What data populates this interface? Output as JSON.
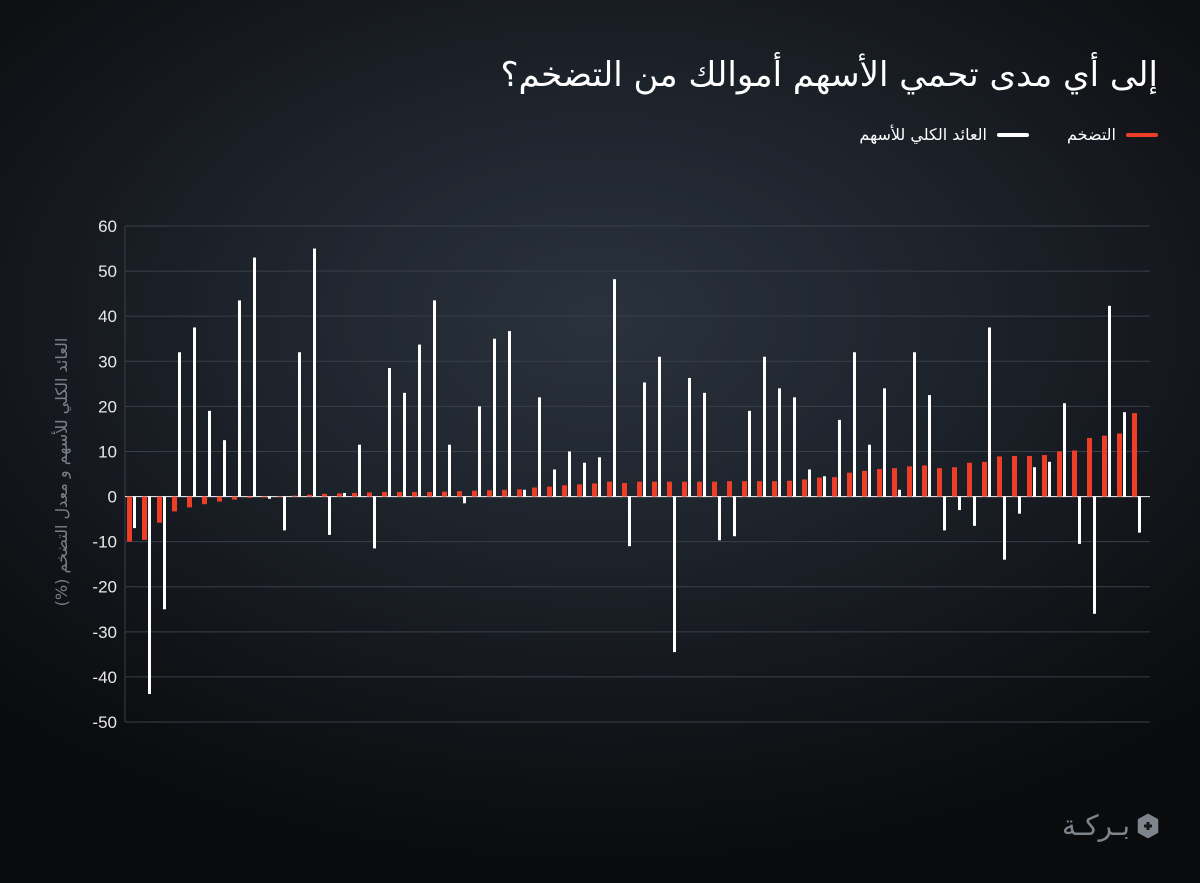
{
  "chart_data": {
    "type": "bar",
    "title": "إلى أي مدى تحمي الأسهم أموالك من التضخم؟",
    "ylabel": "العائد الكلي للأسهم و معدل التضخم (%)",
    "ylim": [
      -50,
      60
    ],
    "yticks": [
      60,
      50,
      40,
      30,
      20,
      10,
      0,
      -10,
      -20,
      -30,
      -40,
      -50
    ],
    "grid": true,
    "legend_position": "top-right",
    "series": [
      {
        "name": "التضخم",
        "color": "#ef3e28",
        "values": [
          -10.0,
          -9.6,
          -5.8,
          -3.3,
          -2.4,
          -1.7,
          -1.1,
          -0.7,
          -0.3,
          -0.2,
          0.0,
          0.2,
          0.4,
          0.6,
          0.7,
          0.8,
          0.9,
          1.0,
          1.0,
          1.0,
          1.0,
          1.1,
          1.2,
          1.3,
          1.4,
          1.5,
          1.6,
          2.0,
          2.2,
          2.5,
          2.7,
          2.9,
          3.3,
          3.0,
          3.3,
          3.3,
          3.3,
          3.3,
          3.3,
          3.3,
          3.4,
          3.4,
          3.4,
          3.4,
          3.5,
          3.8,
          4.2,
          4.3,
          5.3,
          5.7,
          6.1,
          6.3,
          6.7,
          6.9,
          6.3,
          6.5,
          7.5,
          7.7,
          8.9,
          9.0,
          9.0,
          9.2,
          10.0,
          10.2,
          13.0,
          13.5,
          14.0,
          18.5
        ]
      },
      {
        "name": "العائد الكلي للأسهم",
        "color": "#ffffff",
        "values": [
          -7,
          -43.8,
          -25,
          32,
          37.5,
          19,
          12.5,
          43.5,
          53,
          -0.5,
          -7.5,
          32,
          55,
          -8.5,
          0.8,
          11.5,
          -11.5,
          28.5,
          23,
          33.7,
          43.5,
          11.5,
          -1.5,
          20,
          35,
          36.7,
          1.5,
          22,
          6,
          10,
          7.5,
          8.7,
          48.2,
          -11,
          25.3,
          31,
          -34.5,
          26.3,
          23,
          -9.7,
          -8.8,
          19,
          31,
          24,
          22,
          6,
          4.5,
          17,
          32,
          11.5,
          24,
          1.5,
          32,
          22.5,
          -7.5,
          -3,
          -6.5,
          37.5,
          -14,
          -3.8,
          6.5,
          7.7,
          20.7,
          -10.5,
          -26,
          42.3,
          18.7,
          -8
        ]
      }
    ]
  },
  "logo": {
    "text": "بـركـة",
    "icon": "barka-logo-icon"
  }
}
